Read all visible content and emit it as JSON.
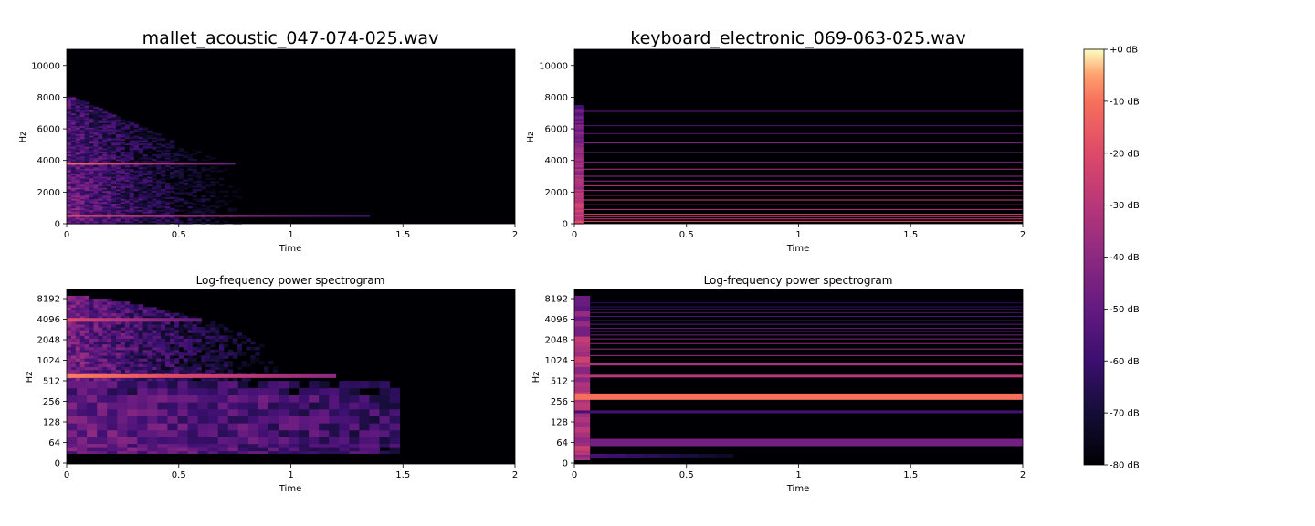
{
  "chart_data": [
    {
      "type": "heatmap",
      "title": "mallet_acoustic_047-074-025.wav",
      "xlabel": "Time",
      "ylabel": "Hz",
      "xlim": [
        0,
        2
      ],
      "ylim": [
        0,
        11025
      ],
      "x_ticks": [
        "0",
        "0.5",
        "1",
        "1.5",
        "2"
      ],
      "y_ticks": [
        "0",
        "2000",
        "4000",
        "6000",
        "8000",
        "10000"
      ],
      "y_scale": "linear",
      "colormap": "magma",
      "features": {
        "broadband_upper_freq_hz": 7500,
        "broadband_decay_s": 0.9,
        "bright_bands_hz": [
          {
            "freq": 3800,
            "start": 0,
            "end": 0.75,
            "level_db": -18
          },
          {
            "freq": 500,
            "start": 0,
            "end": 1.35,
            "level_db": -25
          }
        ]
      }
    },
    {
      "type": "heatmap",
      "title": "keyboard_electronic_069-063-025.wav",
      "xlabel": "Time",
      "ylabel": "Hz",
      "xlim": [
        0,
        2
      ],
      "ylim": [
        0,
        11025
      ],
      "x_ticks": [
        "0",
        "0.5",
        "1",
        "1.5",
        "2"
      ],
      "y_ticks": [
        "0",
        "2000",
        "4000",
        "6000",
        "8000",
        "10000"
      ],
      "y_scale": "linear",
      "colormap": "magma",
      "features": {
        "onset_burst_end_s": 0.04,
        "harmonic_lines_hz": [
          150,
          300,
          450,
          600,
          900,
          1200,
          1500,
          1800,
          2100,
          2400,
          2700,
          3000,
          3450,
          3900,
          4500,
          5100,
          5700,
          6200,
          7100
        ]
      }
    },
    {
      "type": "heatmap",
      "title": "Log-frequency power spectrogram",
      "xlabel": "Time",
      "ylabel": "Hz",
      "xlim": [
        0,
        2
      ],
      "x_ticks": [
        "0",
        "0.5",
        "1",
        "1.5",
        "2"
      ],
      "y_ticks": [
        "0",
        "64",
        "128",
        "256",
        "512",
        "1024",
        "2048",
        "4096",
        "8192"
      ],
      "y_scale": "log",
      "colormap": "magma",
      "features": {
        "broadband_upper_freq_hz": 9000,
        "low_blocks_end_s": 1.45,
        "bright_bands_hz": [
          {
            "freq": 600,
            "start": 0,
            "end": 1.2,
            "level_db": -15
          },
          {
            "freq": 4000,
            "start": 0,
            "end": 0.6,
            "level_db": -25
          }
        ]
      }
    },
    {
      "type": "heatmap",
      "title": "Log-frequency power spectrogram",
      "xlabel": "Time",
      "ylabel": "Hz",
      "xlim": [
        0,
        2
      ],
      "x_ticks": [
        "0",
        "0.5",
        "1",
        "1.5",
        "2"
      ],
      "y_ticks": [
        "0",
        "64",
        "128",
        "256",
        "512",
        "1024",
        "2048",
        "4096",
        "8192"
      ],
      "y_scale": "log",
      "colormap": "magma",
      "features": {
        "onset_burst_end_s": 0.07,
        "bright_bands_hz": [
          {
            "freq": 300,
            "start": 0,
            "end": 2,
            "level_db": -18
          },
          {
            "freq": 600,
            "start": 0,
            "end": 2,
            "level_db": -35
          },
          {
            "freq": 900,
            "start": 0,
            "end": 2,
            "level_db": -38
          },
          {
            "freq": 64,
            "start": 0.07,
            "end": 2,
            "level_db": -50
          },
          {
            "freq": 180,
            "start": 0,
            "end": 2,
            "level_db": -60
          }
        ]
      }
    }
  ],
  "colorbar": {
    "ticks": [
      "+0 dB",
      "-10 dB",
      "-20 dB",
      "-30 dB",
      "-40 dB",
      "-50 dB",
      "-60 dB",
      "-70 dB",
      "-80 dB"
    ],
    "range_db": [
      -80,
      0
    ],
    "colormap": "magma"
  }
}
